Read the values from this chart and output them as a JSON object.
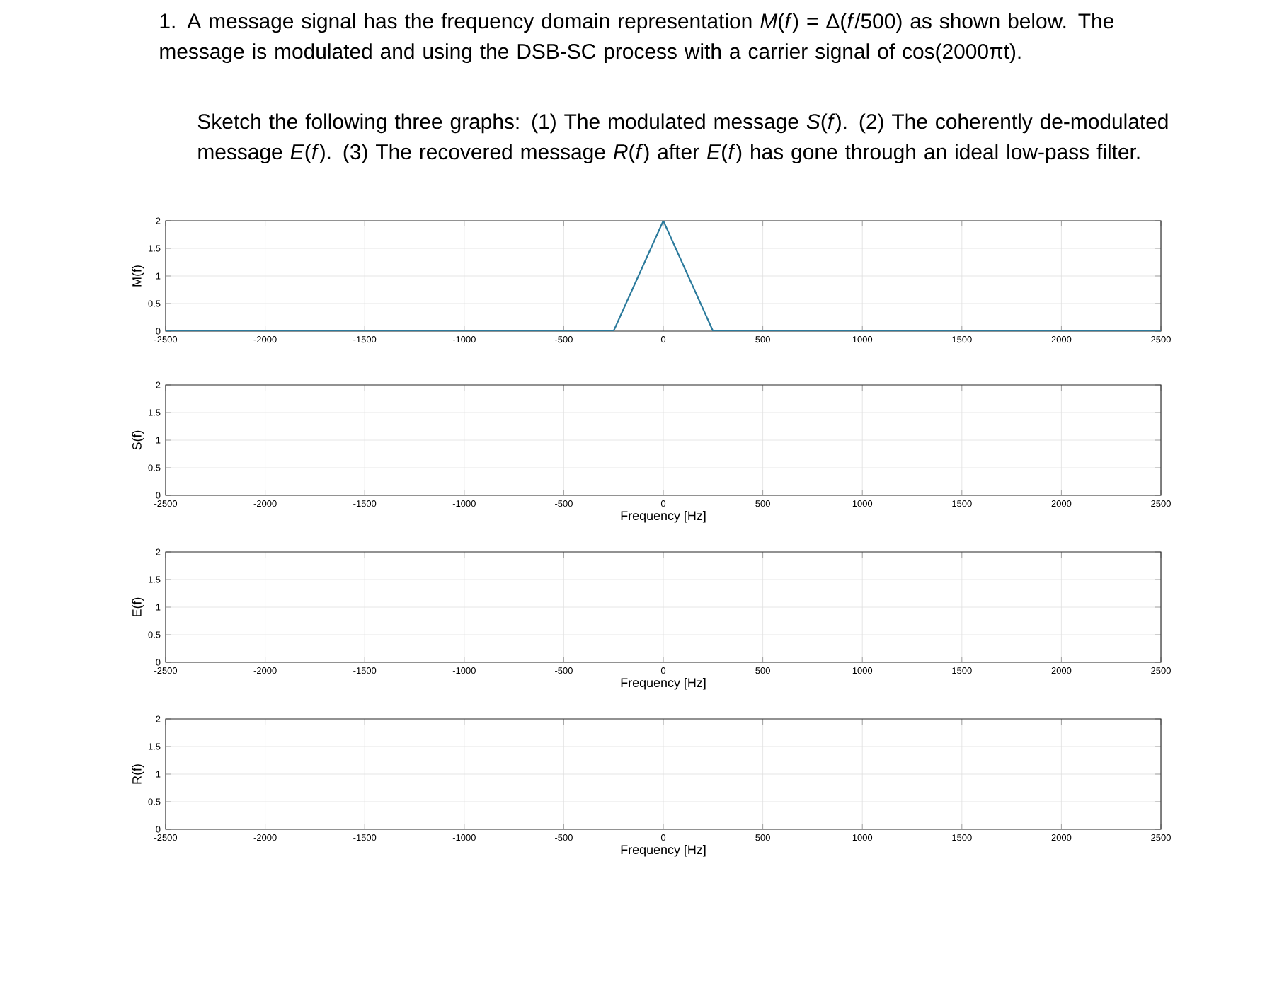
{
  "chart_data": [
    {
      "type": "line",
      "title": "1.  A message signal has the frequency domain representation *M*(*f*) = Δ(*f*/500) as shown below. The message is modulated and using the DSB-SC process with a carrier signal of cos(2000πt).",
      "subtitle": "Sketch the following  three graphs: (1) The modulated message *S*(*f*).  (2) The coherently de-modulated message *E*(*f*). (3) The recovered message *R*(*f*) after *E*(*f*) has gone through an ideal low-pass filter.",
      "ylabel": "M(f)",
      "x": [
        -2500,
        -250,
        0,
        250,
        2500
      ],
      "values": [
        0,
        0,
        2,
        0,
        0
      ],
      "color": "#2b7a9c",
      "xlim": [
        -2500,
        2500
      ],
      "ylim": [
        0,
        2
      ],
      "xticks": [
        -2500,
        -2000,
        -1500,
        -1000,
        -500,
        0,
        500,
        1000,
        1500,
        2000,
        2500
      ],
      "yticks": [
        0,
        0.5,
        1,
        1.5,
        2
      ],
      "grid": true
    },
    {
      "type": "line",
      "xlabel": "Frequency [Hz]",
      "ylabel": "S(f)",
      "xlim": [
        -2500,
        2500
      ],
      "ylim": [
        0,
        2
      ],
      "xticks": [
        -2500,
        -2000,
        -1500,
        -1000,
        -500,
        0,
        500,
        1000,
        1500,
        2000,
        2500
      ],
      "yticks": [
        0,
        0.5,
        1,
        1.5,
        2
      ],
      "grid": true
    },
    {
      "type": "line",
      "xlabel": "Frequency [Hz]",
      "ylabel": "E(f)",
      "xlim": [
        -2500,
        2500
      ],
      "ylim": [
        0,
        2
      ],
      "xticks": [
        -2500,
        -2000,
        -1500,
        -1000,
        -500,
        0,
        500,
        1000,
        1500,
        2000,
        2500
      ],
      "yticks": [
        0,
        0.5,
        1,
        1.5,
        2
      ],
      "grid": true
    },
    {
      "type": "line",
      "xlabel": "Frequency [Hz]",
      "ylabel": "R(f)",
      "xlim": [
        -2500,
        2500
      ],
      "ylim": [
        0,
        2
      ],
      "xticks": [
        -2500,
        -2000,
        -1500,
        -1000,
        -500,
        0,
        500,
        1000,
        1500,
        2000,
        2500
      ],
      "yticks": [
        0,
        0.5,
        1,
        1.5,
        2
      ],
      "grid": true
    }
  ]
}
